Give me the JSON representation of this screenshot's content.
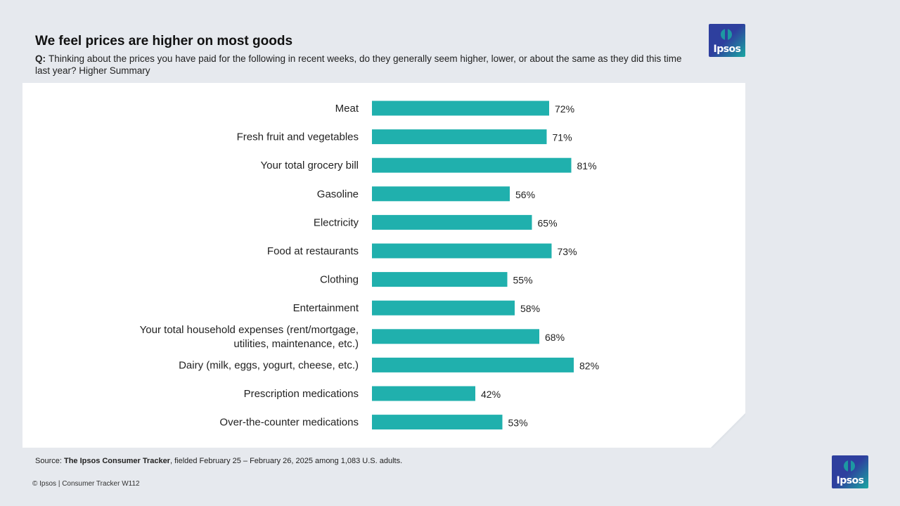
{
  "header": {
    "title": "We feel prices are higher on most goods",
    "question_label": "Q:",
    "question_text": "Thinking about the prices you have paid for the following in recent weeks, do they generally seem higher, lower, or about the same as they did this time last year? Higher Summary"
  },
  "brand": {
    "logo_text": "Ipsos",
    "primary_color": "#2e3f9e",
    "accent_color": "#1aa8a2"
  },
  "colors": {
    "bar": "#20b0ad",
    "background": "#e6e9ee",
    "panel": "#ffffff"
  },
  "chart_data": {
    "type": "bar",
    "orientation": "horizontal",
    "categories": [
      "Meat",
      "Fresh fruit and vegetables",
      "Your total grocery bill",
      "Gasoline",
      "Electricity",
      "Food at restaurants",
      "Clothing",
      "Entertainment",
      "Your total household expenses (rent/mortgage, utilities, maintenance, etc.)",
      "Dairy (milk, eggs, yogurt, cheese, etc.)",
      "Prescription medications",
      "Over-the-counter medications"
    ],
    "values": [
      72,
      71,
      81,
      56,
      65,
      73,
      55,
      58,
      68,
      82,
      42,
      53
    ],
    "value_suffix": "%",
    "xlim": [
      0,
      100
    ],
    "grid": false,
    "legend": "none"
  },
  "source": {
    "prefix": "Source: ",
    "name": "The Ipsos Consumer Tracker",
    "suffix": ", fielded February 25 – February 26, 2025 among 1,083 U.S. adults."
  },
  "footer": {
    "text": "© Ipsos | Consumer Tracker W112"
  }
}
